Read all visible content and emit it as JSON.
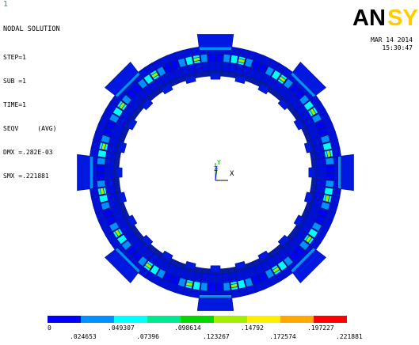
{
  "window": {
    "number": "1"
  },
  "header": {
    "title": "NODAL SOLUTION",
    "lines": [
      "STEP=1",
      "SUB =1",
      "TIME=1",
      "SEQV     (AVG)",
      "DMX =.282E-03",
      "SMX =.221881"
    ]
  },
  "logo": {
    "text_dark": "AN",
    "text_accent": "SYS",
    "accent_color": "#ffcc00"
  },
  "datetime": {
    "date": "MAR 14 2014",
    "time": "15:30:47"
  },
  "axis_triad": {
    "y_label": "Y",
    "z_label": "Z",
    "x_label": "X"
  },
  "legend": {
    "colors": [
      "#0000ff",
      "#0090ff",
      "#00ffff",
      "#00e890",
      "#00d800",
      "#a0f000",
      "#ffee00",
      "#ffa800",
      "#ff0000"
    ],
    "labels_top": [
      "0",
      ".049307",
      ".098614",
      ".14792",
      ".197227"
    ],
    "labels_bottom": [
      ".024653",
      ".07396",
      ".123267",
      ".172574",
      ".221881"
    ]
  }
}
